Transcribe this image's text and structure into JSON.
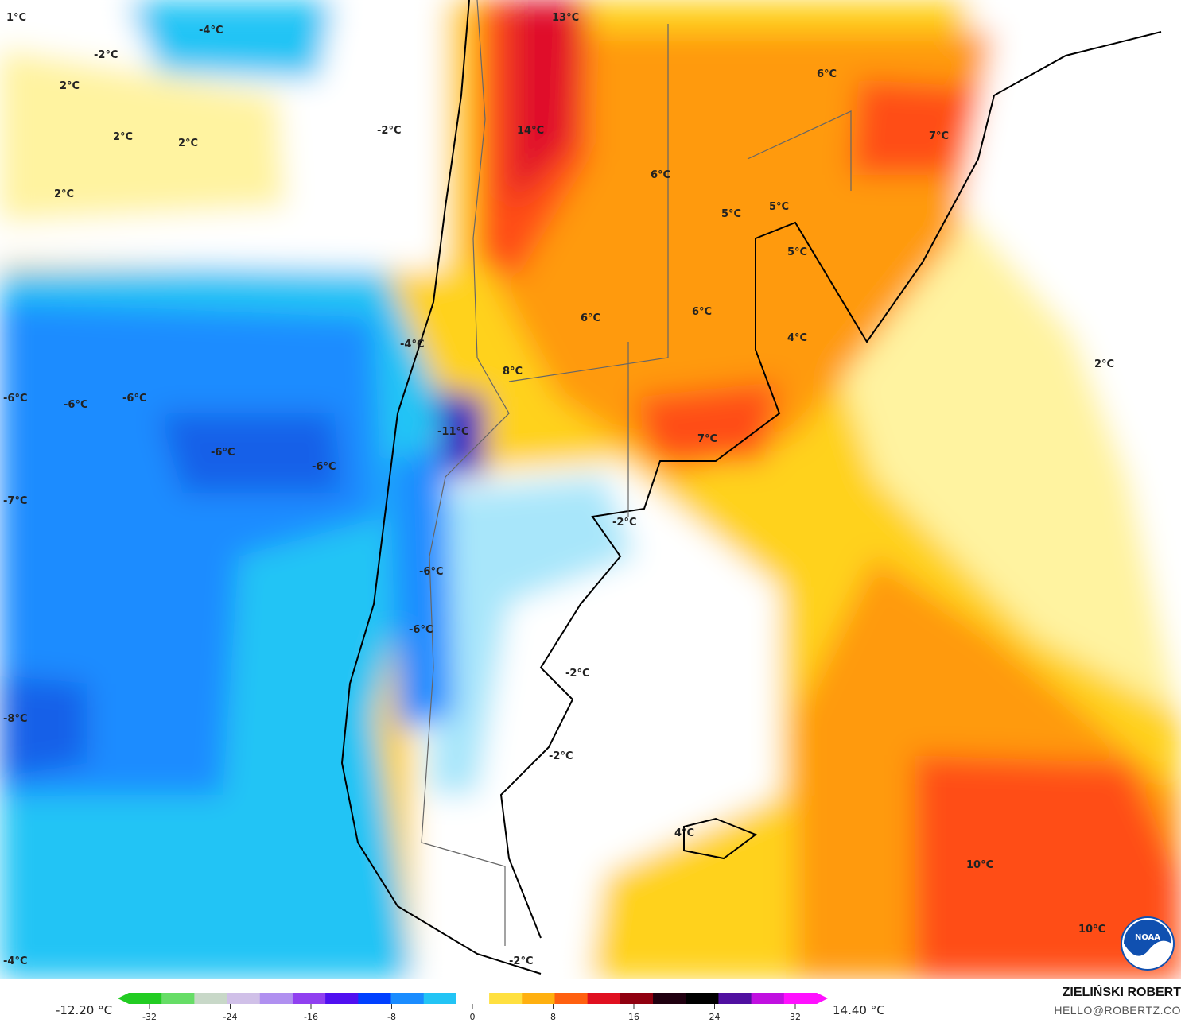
{
  "map": {
    "variable_unit": "°C",
    "contour_labels": [
      "1°C",
      "-4°C",
      "-2°C",
      "2°C",
      "2°C",
      "2°C",
      "2°C",
      "-2°C",
      "13°C",
      "14°C",
      "6°C",
      "7°C",
      "6°C",
      "5°C",
      "5°C",
      "5°C",
      "6°C",
      "6°C",
      "4°C",
      "2°C",
      "-4°C",
      "8°C",
      "-6°C",
      "-6°C",
      "-6°C",
      "-11°C",
      "-6°C",
      "-6°C",
      "7°C",
      "-7°C",
      "-2°C",
      "-6°C",
      "-6°C",
      "-2°C",
      "-8°C",
      "-2°C",
      "4°C",
      "10°C",
      "10°C",
      "-4°C",
      "-2°C"
    ],
    "colors": {
      "deep_blue": "#1560e8",
      "blue": "#1a8cff",
      "cyan": "#22c4f5",
      "light_cyan": "#a8e6fa",
      "white": "#ffffff",
      "light_yellow": "#fff3a0",
      "yellow": "#ffd21a",
      "orange": "#ff9a10",
      "red_orange": "#ff4d14",
      "red": "#e0102a",
      "purple": "#3010c0"
    }
  },
  "legend": {
    "min_value": "-12.20 °C",
    "max_value": "14.40 °C",
    "ticks": [
      "-32",
      "-24",
      "-16",
      "-8",
      "0",
      "8",
      "16",
      "24",
      "32"
    ],
    "colors": [
      "#22cc22",
      "#66dd66",
      "#c8d8c8",
      "#d0c0e8",
      "#b090f0",
      "#9040f0",
      "#5010f0",
      "#0040ff",
      "#1a8cff",
      "#22c4f5",
      "#ffffff",
      "#ffe040",
      "#ffb010",
      "#ff6010",
      "#e01020",
      "#900010",
      "#200010",
      "#000000",
      "#5010a0",
      "#c010e0",
      "#ff10ff"
    ]
  },
  "credits": {
    "author": "ZIELIŃSKI ROBERT",
    "email": "HELLO@ROBERTZ.CO",
    "logo": "NOAA"
  }
}
